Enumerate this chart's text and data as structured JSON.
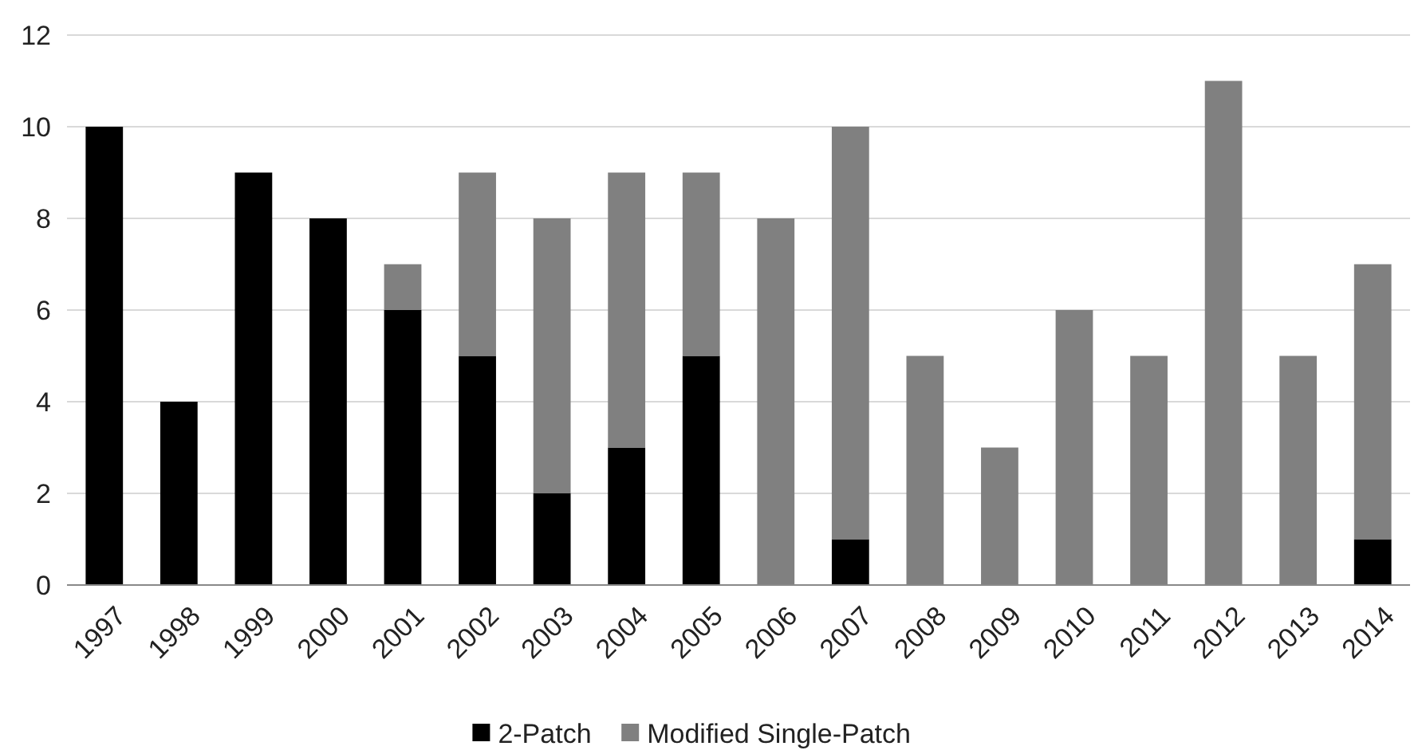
{
  "chart_data": {
    "type": "bar",
    "stacked": true,
    "categories": [
      "1997",
      "1998",
      "1999",
      "2000",
      "2001",
      "2002",
      "2003",
      "2004",
      "2005",
      "2006",
      "2007",
      "2008",
      "2009",
      "2010",
      "2011",
      "2012",
      "2013",
      "2014"
    ],
    "series": [
      {
        "name": "2-Patch",
        "color": "#000000",
        "values": [
          10,
          4,
          9,
          8,
          6,
          5,
          2,
          3,
          5,
          0,
          1,
          0,
          0,
          0,
          0,
          0,
          0,
          1
        ]
      },
      {
        "name": "Modified Single-Patch",
        "color": "#808080",
        "values": [
          0,
          0,
          0,
          0,
          1,
          4,
          6,
          6,
          4,
          8,
          9,
          5,
          3,
          6,
          5,
          11,
          5,
          6
        ]
      }
    ],
    "ylim": [
      0,
      12
    ],
    "yticks": [
      0,
      2,
      4,
      6,
      8,
      10,
      12
    ],
    "grid": "y",
    "legend": "bottom"
  }
}
